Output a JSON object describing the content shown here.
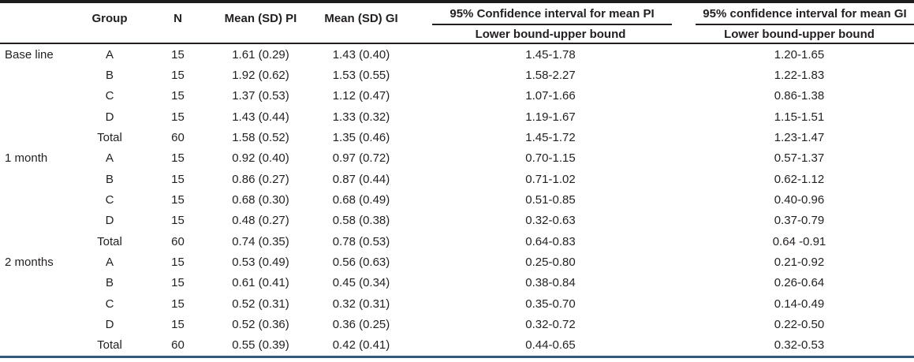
{
  "table": {
    "columns": {
      "period": "",
      "group": "Group",
      "n": "N",
      "mean_pi": "Mean (SD) PI",
      "mean_gi": "Mean (SD) GI",
      "ci_pi": "95% Confidence interval for mean PI",
      "ci_gi": "95% confidence interval for mean GI",
      "ci_pi_subheader": "Lower bound-upper bound",
      "ci_gi_subheader": "Lower bound-upper bound"
    },
    "sections": [
      {
        "period": "Base line",
        "rows": [
          {
            "group": "A",
            "n": "15",
            "mean_pi": "1.61 (0.29)",
            "mean_gi": "1.43 (0.40)",
            "ci_pi": "1.45-1.78",
            "ci_gi": "1.20-1.65"
          },
          {
            "group": "B",
            "n": "15",
            "mean_pi": "1.92 (0.62)",
            "mean_gi": "1.53 (0.55)",
            "ci_pi": "1.58-2.27",
            "ci_gi": "1.22-1.83"
          },
          {
            "group": "C",
            "n": "15",
            "mean_pi": "1.37 (0.53)",
            "mean_gi": "1.12 (0.47)",
            "ci_pi": "1.07-1.66",
            "ci_gi": "0.86-1.38"
          },
          {
            "group": "D",
            "n": "15",
            "mean_pi": "1.43 (0.44)",
            "mean_gi": "1.33 (0.32)",
            "ci_pi": "1.19-1.67",
            "ci_gi": "1.15-1.51"
          },
          {
            "group": "Total",
            "n": "60",
            "mean_pi": "1.58 (0.52)",
            "mean_gi": "1.35 (0.46)",
            "ci_pi": "1.45-1.72",
            "ci_gi": "1.23-1.47"
          }
        ]
      },
      {
        "period": "1 month",
        "rows": [
          {
            "group": "A",
            "n": "15",
            "mean_pi": "0.92 (0.40)",
            "mean_gi": "0.97 (0.72)",
            "ci_pi": "0.70-1.15",
            "ci_gi": "0.57-1.37"
          },
          {
            "group": "B",
            "n": "15",
            "mean_pi": "0.86 (0.27)",
            "mean_gi": "0.87 (0.44)",
            "ci_pi": "0.71-1.02",
            "ci_gi": "0.62-1.12"
          },
          {
            "group": "C",
            "n": "15",
            "mean_pi": "0.68 (0.30)",
            "mean_gi": "0.68 (0.49)",
            "ci_pi": "0.51-0.85",
            "ci_gi": "0.40-0.96"
          },
          {
            "group": "D",
            "n": "15",
            "mean_pi": "0.48 (0.27)",
            "mean_gi": "0.58 (0.38)",
            "ci_pi": "0.32-0.63",
            "ci_gi": "0.37-0.79"
          },
          {
            "group": "Total",
            "n": "60",
            "mean_pi": "0.74 (0.35)",
            "mean_gi": "0.78 (0.53)",
            "ci_pi": "0.64-0.83",
            "ci_gi": "0.64 -0.91"
          }
        ]
      },
      {
        "period": "2 months",
        "rows": [
          {
            "group": "A",
            "n": "15",
            "mean_pi": "0.53 (0.49)",
            "mean_gi": "0.56 (0.63)",
            "ci_pi": "0.25-0.80",
            "ci_gi": "0.21-0.92"
          },
          {
            "group": "B",
            "n": "15",
            "mean_pi": "0.61 (0.41)",
            "mean_gi": "0.45 (0.34)",
            "ci_pi": "0.38-0.84",
            "ci_gi": "0.26-0.64"
          },
          {
            "group": "C",
            "n": "15",
            "mean_pi": "0.52 (0.31)",
            "mean_gi": "0.32 (0.31)",
            "ci_pi": "0.35-0.70",
            "ci_gi": "0.14-0.49"
          },
          {
            "group": "D",
            "n": "15",
            "mean_pi": "0.52 (0.36)",
            "mean_gi": "0.36 (0.25)",
            "ci_pi": "0.32-0.72",
            "ci_gi": "0.22-0.50"
          },
          {
            "group": "Total",
            "n": "60",
            "mean_pi": "0.55 (0.39)",
            "mean_gi": "0.42 (0.41)",
            "ci_pi": "0.44-0.65",
            "ci_gi": "0.32-0.53"
          }
        ]
      }
    ],
    "colors": {
      "text": "#231f20",
      "top_rule": "#1c1c1c",
      "header_rule": "#231f20",
      "bottom_rule": "#33597a"
    }
  }
}
